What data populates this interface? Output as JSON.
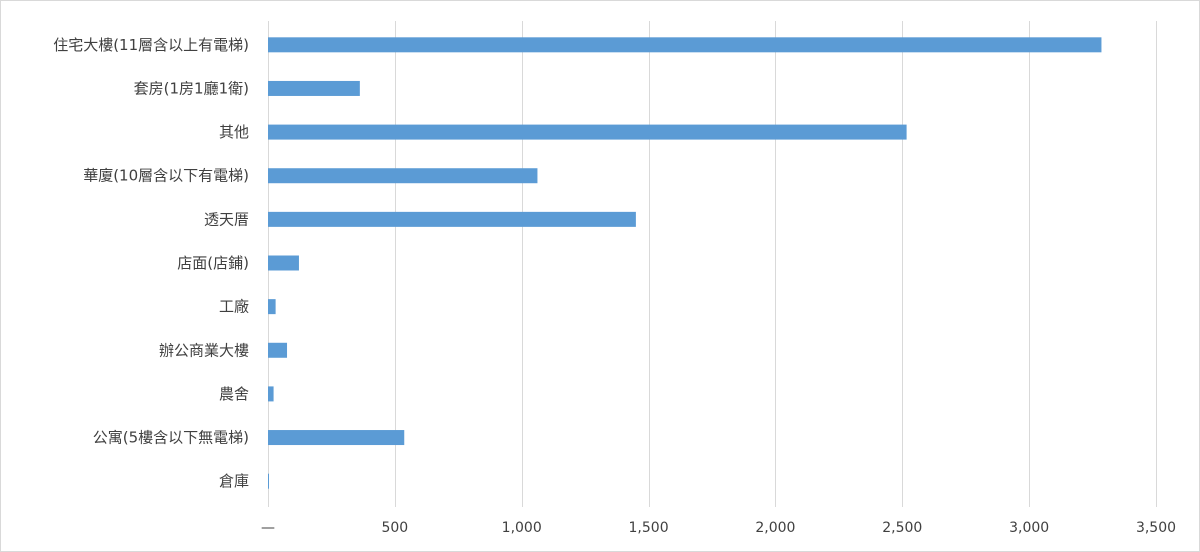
{
  "chart_data": {
    "type": "bar",
    "orientation": "horizontal",
    "categories": [
      "住宅大樓(11層含以上有電梯)",
      "套房(1房1廳1衛)",
      "其他",
      "華廈(10層含以下有電梯)",
      "透天厝",
      "店面(店鋪)",
      "工廠",
      "辦公商業大樓",
      "農舍",
      "公寓(5樓含以下無電梯)",
      "倉庫"
    ],
    "values": [
      3285,
      362,
      2517,
      1062,
      1450,
      122,
      30,
      75,
      22,
      537,
      2
    ],
    "xlim": [
      0,
      3500
    ],
    "xticks": [
      0,
      500,
      1000,
      1500,
      2000,
      2500,
      3000,
      3500
    ],
    "xtick_labels": [
      "—",
      "500",
      "1,000",
      "1,500",
      "2,000",
      "2,500",
      "3,000",
      "3,500"
    ],
    "bar_color": "#5b9bd5",
    "grid": true,
    "legend": "none"
  }
}
